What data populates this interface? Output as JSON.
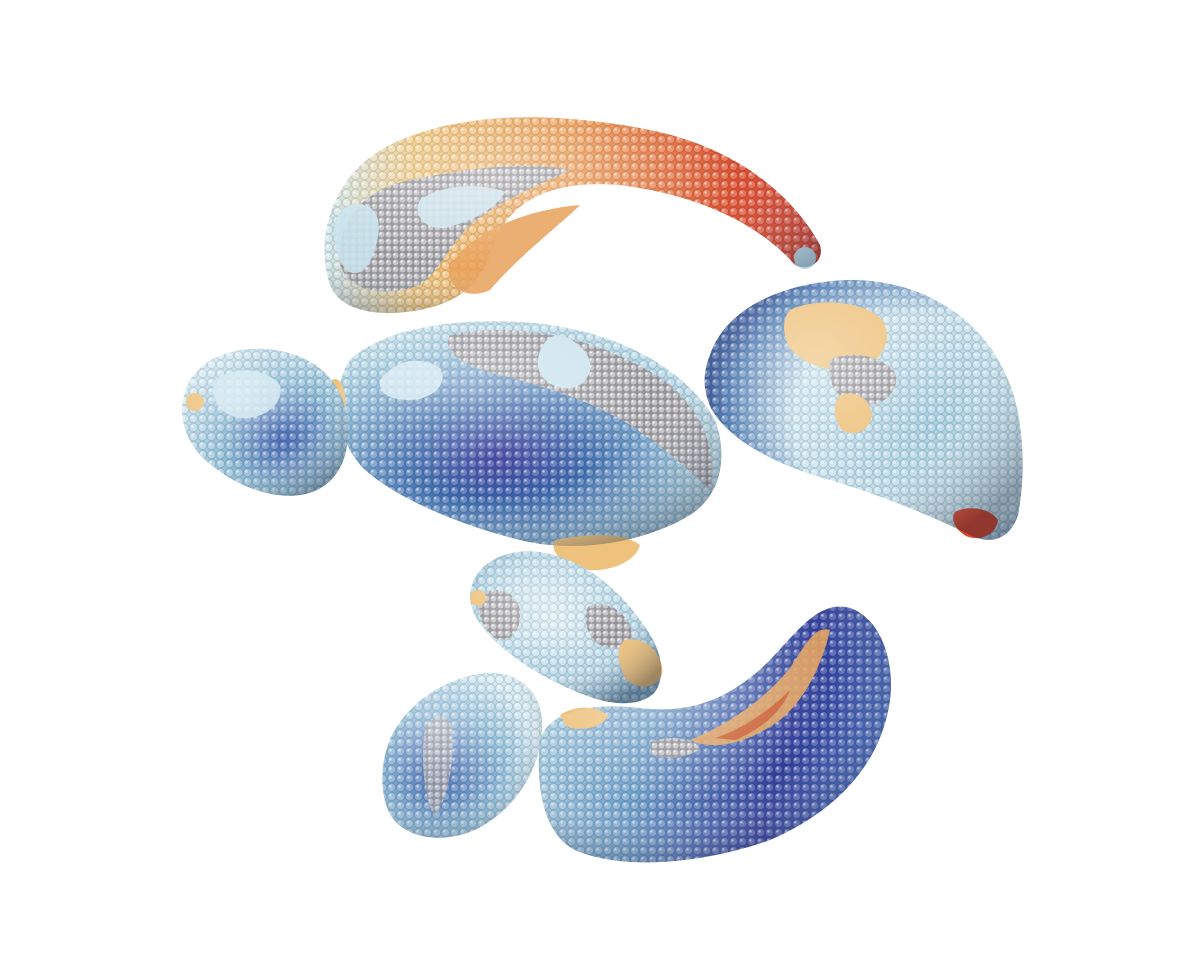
{
  "figure": {
    "background": "#ffffff",
    "colormap": [
      "#2e2e9a",
      "#3f6fb0",
      "#9ecae1",
      "#d9ecf2",
      "#f2d38a",
      "#f1a85a",
      "#d9402a"
    ],
    "unmapped_color": "#a9a9ad"
  },
  "structures": [
    {
      "id": "caudate",
      "dominant": "warm"
    },
    {
      "id": "putamen",
      "dominant": "cool"
    },
    {
      "id": "pallidum",
      "dominant": "pale"
    },
    {
      "id": "thalamus",
      "dominant": "pale"
    },
    {
      "id": "amygdala",
      "dominant": "cool"
    },
    {
      "id": "hippocampus",
      "dominant": "cool"
    },
    {
      "id": "nucleus-accumbens",
      "dominant": "cool"
    }
  ]
}
